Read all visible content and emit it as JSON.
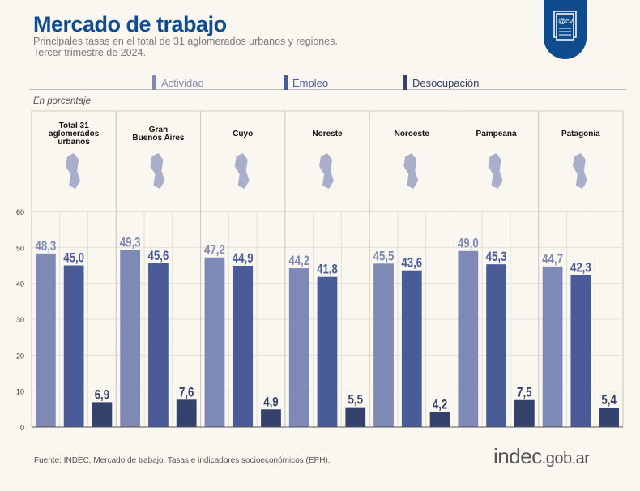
{
  "header": {
    "title": "Mercado de trabajo",
    "subtitle_1": "Principales tasas en el total de 31 aglomerados urbanos y regiones.",
    "subtitle_2": "Tercer trimestre de 2024."
  },
  "badge_icon": "cv-document-icon",
  "chart_data": {
    "type": "bar",
    "ylabel": "En porcentaje",
    "ylim": [
      0,
      60
    ],
    "yticks": [
      0,
      10,
      20,
      30,
      40,
      50,
      60
    ],
    "grid": true,
    "legend_placement": "top",
    "categories": [
      "Total 31 aglomerados urbanos",
      "Gran Buenos Aires",
      "Cuyo",
      "Noreste",
      "Noroeste",
      "Pampeana",
      "Patagonia"
    ],
    "series": [
      {
        "name": "Actividad",
        "color": "#7f89b6",
        "values": [
          48.3,
          49.3,
          47.2,
          44.2,
          45.5,
          49.0,
          44.7
        ],
        "labels": [
          "48,3",
          "49,3",
          "47,2",
          "44,2",
          "45,5",
          "49,0",
          "44,7"
        ]
      },
      {
        "name": "Empleo",
        "color": "#4a5c98",
        "values": [
          45.0,
          45.6,
          44.9,
          41.8,
          43.6,
          45.3,
          42.3
        ],
        "labels": [
          "45,0",
          "45,6",
          "44,9",
          "41,8",
          "43,6",
          "45,3",
          "42,3"
        ]
      },
      {
        "name": "Desocupación",
        "color": "#34416a",
        "values": [
          6.9,
          7.6,
          4.9,
          5.5,
          4.2,
          7.5,
          5.4
        ],
        "labels": [
          "6,9",
          "7,6",
          "4,9",
          "5,5",
          "4,2",
          "7,5",
          "5,4"
        ]
      }
    ]
  },
  "footer": {
    "source": "Fuente: INDEC, Mercado de trabajo. Tasas e indicadores socioeconómicos (EPH).",
    "logo_main": "indec",
    "logo_suffix": ".gob.ar"
  }
}
